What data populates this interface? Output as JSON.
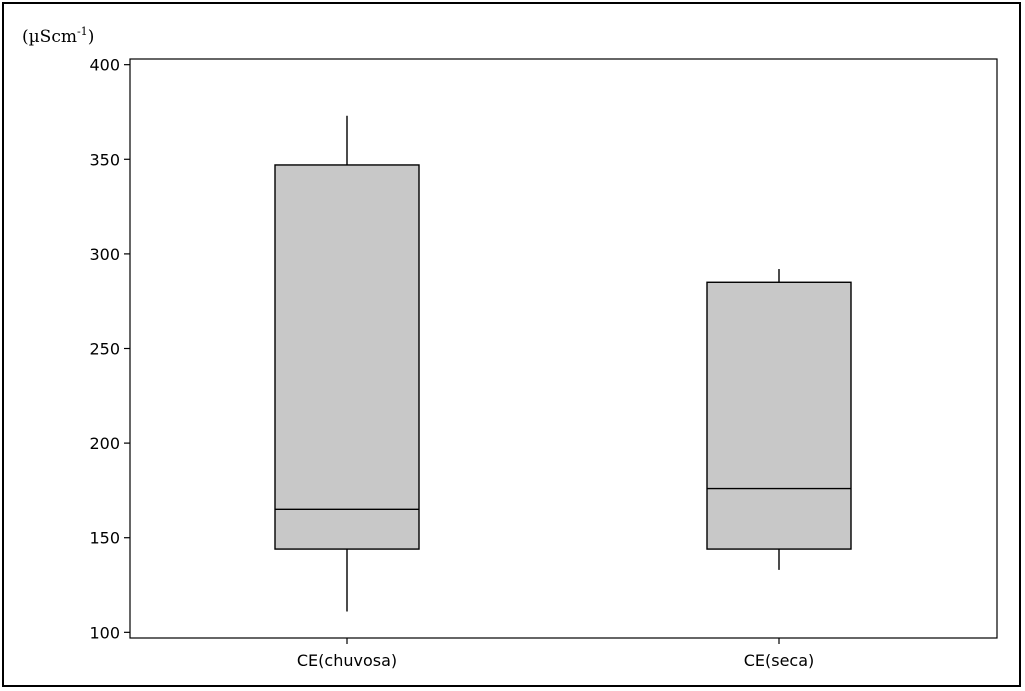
{
  "chart_data": {
    "type": "box",
    "y_unit_label": {
      "text": "(µScm",
      "superscript": "-1",
      "close": ")"
    },
    "ylim": [
      97,
      403
    ],
    "yticks": [
      100,
      150,
      200,
      250,
      300,
      350,
      400
    ],
    "categories": [
      "CE(chuvosa)",
      "CE(seca)"
    ],
    "boxes": [
      {
        "label": "CE(chuvosa)",
        "whisker_low": 111,
        "q1": 144,
        "median": 165,
        "q3": 347,
        "whisker_high": 373
      },
      {
        "label": "CE(seca)",
        "whisker_low": 133,
        "q1": 144,
        "median": 176,
        "q3": 285,
        "whisker_high": 292
      }
    ],
    "box_fill": "#c8c8c8",
    "line_color": "#000000",
    "grid": false,
    "legend": "none"
  }
}
